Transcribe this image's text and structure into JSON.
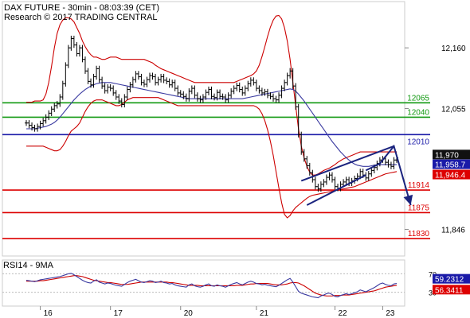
{
  "header": {
    "title": "DAX FUTURE - 30min - 08:03:39 (CET)",
    "copyright": "Research © 2017 TRADING CENTRAL"
  },
  "colors": {
    "price": "#000000",
    "bollinger": "#cc0000",
    "ma": "#3a3aa0",
    "support": "#dd0000",
    "resistance": "#119911",
    "pivot": "#1a1aa8",
    "arrow": "#1a237e",
    "tag_dark": "#111111",
    "tag_blue": "#1a1aa8",
    "tag_red": "#dd0000"
  },
  "price_axis": {
    "ticks": [
      "12,160",
      "12,055",
      "11,846"
    ]
  },
  "levels": [
    {
      "value": 12065,
      "label": "12065",
      "kind": "resistance"
    },
    {
      "value": 12040,
      "label": "12040",
      "kind": "resistance"
    },
    {
      "value": 12010,
      "label": "12010",
      "kind": "pivot"
    },
    {
      "value": 11914,
      "label": "11914",
      "kind": "support"
    },
    {
      "value": 11875,
      "label": "11875",
      "kind": "support"
    },
    {
      "value": 11830,
      "label": "11830",
      "kind": "support"
    }
  ],
  "tags": [
    {
      "value": 11970,
      "label": "11,970",
      "style": "dark"
    },
    {
      "value": 11958.7,
      "label": "11,958.7",
      "style": "blue"
    },
    {
      "value": 11946.4,
      "label": "11,946.4",
      "style": "red"
    }
  ],
  "rsi": {
    "title": "RSI14 - 9MA",
    "ticks": [
      "70",
      "30"
    ],
    "tags": [
      {
        "value": 59.2312,
        "label": "59.2312",
        "style": "blue"
      },
      {
        "value": 56.3411,
        "label": "56.3411",
        "style": "red"
      }
    ]
  },
  "x_axis": {
    "labels": [
      "16",
      "17",
      "20",
      "21",
      "22",
      "23"
    ]
  },
  "chart_data": {
    "type": "candlestick",
    "title": "DAX FUTURE - 30min - 08:03:39 (CET)",
    "x_labels": [
      "16",
      "17",
      "20",
      "21",
      "22",
      "23"
    ],
    "close": [
      12030,
      12026,
      12022,
      12020,
      12024,
      12029,
      12034,
      12040,
      12047,
      12054,
      12060,
      12063,
      12075,
      12098,
      12130,
      12160,
      12176,
      12165,
      12150,
      12160,
      12140,
      12120,
      12102,
      12096,
      12110,
      12124,
      12105,
      12094,
      12086,
      12092,
      12090,
      12082,
      12075,
      12068,
      12062,
      12075,
      12088,
      12096,
      12105,
      12115,
      12110,
      12100,
      12097,
      12105,
      12112,
      12110,
      12100,
      12105,
      12110,
      12104,
      12102,
      12096,
      12100,
      12090,
      12082,
      12080,
      12076,
      12072,
      12085,
      12090,
      12078,
      12072,
      12070,
      12075,
      12083,
      12088,
      12076,
      12074,
      12083,
      12076,
      12075,
      12070,
      12078,
      12085,
      12090,
      12095,
      12088,
      12082,
      12090,
      12098,
      12104,
      12100,
      12090,
      12086,
      12082,
      12084,
      12078,
      12076,
      12072,
      12070,
      12078,
      12090,
      12100,
      12112,
      12120,
      12094,
      12058,
      12010,
      11980,
      11968,
      11956,
      11944,
      11932,
      11920,
      11916,
      11924,
      11928,
      11936,
      11940,
      11932,
      11920,
      11917,
      11924,
      11928,
      11932,
      11926,
      11930,
      11934,
      11938,
      11946,
      11940,
      11935,
      11942,
      11948,
      11953,
      11960,
      11966,
      11968,
      11962,
      11958,
      11955,
      11966,
      11970
    ],
    "bollinger_upper": [
      12066,
      12066,
      12066,
      12068,
      12068,
      12068,
      12070,
      12080,
      12100,
      12128,
      12160,
      12185,
      12200,
      12208,
      12212,
      12212,
      12210,
      12205,
      12195,
      12185,
      12172,
      12162,
      12154,
      12148,
      12144,
      12144,
      12142,
      12140,
      12140,
      12142,
      12144,
      12144,
      12144,
      12142,
      12140,
      12140,
      12140,
      12140,
      12140,
      12140,
      12140,
      12140,
      12140,
      12138,
      12136,
      12134,
      12130,
      12127,
      12124,
      12122,
      12120,
      12118,
      12116,
      12114,
      12112,
      12110,
      12108,
      12106,
      12104,
      12102,
      12100,
      12100,
      12100,
      12100,
      12100,
      12100,
      12100,
      12100,
      12100,
      12100,
      12100,
      12100,
      12100,
      12100,
      12100,
      12102,
      12104,
      12106,
      12108,
      12110,
      12112,
      12115,
      12120,
      12130,
      12145,
      12162,
      12180,
      12196,
      12208,
      12215,
      12216,
      12210,
      12195,
      12172,
      12140,
      12100,
      12060,
      12020,
      11990,
      11970,
      11955,
      11945,
      11940,
      11940,
      11942,
      11945,
      11948,
      11950,
      11952,
      11955,
      11958,
      11962,
      11965,
      11968,
      11970,
      11972,
      11974,
      11976,
      11978,
      11980,
      11980,
      11980,
      11980,
      11980,
      11980,
      11980,
      11980,
      11980,
      11980,
      11980,
      11980,
      11980,
      11980
    ],
    "bollinger_lower": [
      11990,
      11990,
      11990,
      11990,
      11990,
      11990,
      11990,
      11988,
      11986,
      11984,
      11982,
      11982,
      11984,
      11990,
      11998,
      12008,
      12016,
      12020,
      12024,
      12030,
      12040,
      12050,
      12058,
      12064,
      12068,
      12070,
      12070,
      12070,
      12068,
      12066,
      12064,
      12062,
      12060,
      12060,
      12062,
      12066,
      12070,
      12072,
      12074,
      12074,
      12074,
      12074,
      12074,
      12074,
      12074,
      12074,
      12074,
      12074,
      12072,
      12070,
      12068,
      12066,
      12064,
      12062,
      12060,
      12060,
      12060,
      12060,
      12060,
      12060,
      12060,
      12060,
      12060,
      12060,
      12060,
      12060,
      12060,
      12060,
      12060,
      12060,
      12060,
      12060,
      12060,
      12060,
      12060,
      12060,
      12060,
      12060,
      12060,
      12060,
      12060,
      12060,
      12058,
      12054,
      12046,
      12034,
      12018,
      11998,
      11974,
      11946,
      11918,
      11892,
      11872,
      11866,
      11870,
      11878,
      11884,
      11888,
      11892,
      11896,
      11900,
      11903,
      11905,
      11906,
      11907,
      11908,
      11909,
      11910,
      11911,
      11912,
      11913,
      11914,
      11915,
      11916,
      11917,
      11918,
      11919,
      11920,
      11922,
      11924,
      11926,
      11928,
      11930,
      11932,
      11934,
      11936,
      11938,
      11940,
      11942,
      11943,
      11944,
      11945,
      11946
    ],
    "moving_average": [
      12020,
      12020,
      12020,
      12020,
      12021,
      12022,
      12023,
      12024,
      12026,
      12028,
      12031,
      12035,
      12040,
      12046,
      12052,
      12058,
      12064,
      12070,
      12075,
      12080,
      12084,
      12088,
      12091,
      12094,
      12096,
      12098,
      12099,
      12100,
      12100,
      12100,
      12100,
      12099,
      12098,
      12097,
      12096,
      12095,
      12094,
      12093,
      12092,
      12091,
      12090,
      12089,
      12088,
      12087,
      12086,
      12085,
      12084,
      12083,
      12082,
      12081,
      12080,
      12079,
      12078,
      12077,
      12076,
      12075,
      12074,
      12073,
      12072,
      12072,
      12072,
      12072,
      12072,
      12072,
      12072,
      12072,
      12072,
      12072,
      12072,
      12072,
      12072,
      12072,
      12072,
      12072,
      12072,
      12072,
      12072,
      12072,
      12073,
      12074,
      12075,
      12076,
      12077,
      12078,
      12079,
      12080,
      12081,
      12082,
      12083,
      12084,
      12085,
      12086,
      12087,
      12088,
      12089,
      12088,
      12085,
      12080,
      12074,
      12068,
      12061,
      12054,
      12047,
      12040,
      12033,
      12026,
      12019,
      12012,
      12005,
      11998,
      11992,
      11986,
      11980,
      11975,
      11970,
      11966,
      11962,
      11959,
      11957,
      11956,
      11955,
      11955,
      11955,
      11956,
      11957,
      11958,
      11958,
      11958,
      11958,
      11958,
      11958,
      11958,
      11958
    ],
    "rsi": [
      56,
      55,
      54,
      53,
      55,
      57,
      58,
      59,
      60,
      61,
      62,
      63,
      64,
      66,
      68,
      70,
      71,
      68,
      64,
      60,
      56,
      53,
      51,
      50,
      54,
      57,
      52,
      50,
      48,
      50,
      49,
      47,
      45,
      44,
      43,
      47,
      51,
      54,
      56,
      58,
      55,
      52,
      51,
      53,
      55,
      54,
      51,
      52,
      54,
      51,
      50,
      48,
      49,
      46,
      44,
      43,
      42,
      41,
      46,
      48,
      44,
      42,
      41,
      43,
      46,
      48,
      44,
      43,
      46,
      44,
      43,
      41,
      44,
      47,
      49,
      51,
      48,
      46,
      49,
      52,
      54,
      52,
      49,
      48,
      46,
      47,
      45,
      44,
      43,
      42,
      45,
      49,
      53,
      57,
      60,
      52,
      42,
      32,
      28,
      26,
      24,
      22,
      20,
      19,
      18,
      22,
      24,
      27,
      28,
      25,
      21,
      20,
      23,
      25,
      27,
      25,
      27,
      29,
      31,
      35,
      33,
      31,
      34,
      37,
      40,
      44,
      48,
      50,
      47,
      45,
      44,
      48,
      49
    ],
    "rsi_ma": [
      54,
      54,
      54,
      54,
      54,
      55,
      55,
      56,
      57,
      58,
      59,
      60,
      61,
      62,
      63,
      64,
      65,
      66,
      66,
      65,
      64,
      62,
      60,
      58,
      56,
      55,
      54,
      53,
      52,
      51,
      51,
      50,
      49,
      48,
      47,
      47,
      47,
      48,
      49,
      50,
      51,
      52,
      52,
      52,
      52,
      52,
      52,
      52,
      52,
      52,
      52,
      51,
      51,
      50,
      49,
      48,
      47,
      46,
      45,
      45,
      45,
      45,
      44,
      44,
      44,
      44,
      44,
      44,
      44,
      44,
      44,
      44,
      44,
      44,
      44,
      45,
      45,
      45,
      46,
      47,
      48,
      48,
      49,
      49,
      49,
      49,
      49,
      48,
      47,
      46,
      46,
      46,
      47,
      48,
      50,
      51,
      51,
      50,
      47,
      44,
      40,
      36,
      32,
      28,
      26,
      24,
      23,
      22,
      22,
      22,
      23,
      23,
      23,
      24,
      24,
      24,
      25,
      26,
      27,
      28,
      29,
      30,
      31,
      32,
      33,
      35,
      37,
      39,
      41,
      42,
      43,
      44,
      45
    ],
    "price_axis_ticks": [
      12160,
      12055,
      11846
    ],
    "ylim": [
      11800,
      12240
    ],
    "support_levels": [
      11914,
      11875,
      11830
    ],
    "resistance_levels": [
      12065,
      12040
    ],
    "pivot": 12010,
    "trend_channel": {
      "upper": [
        [
          98,
          11930
        ],
        [
          131,
          11990
        ]
      ],
      "lower": [
        [
          100,
          11888
        ],
        [
          121,
          11940
        ]
      ]
    },
    "projection_arrow": [
      [
        121,
        11948
      ],
      [
        126,
        11960
      ],
      [
        131,
        11990
      ],
      [
        137,
        11888
      ]
    ],
    "rsi_ticks": [
      70,
      30
    ],
    "rsi_ylim": [
      0,
      100
    ]
  }
}
